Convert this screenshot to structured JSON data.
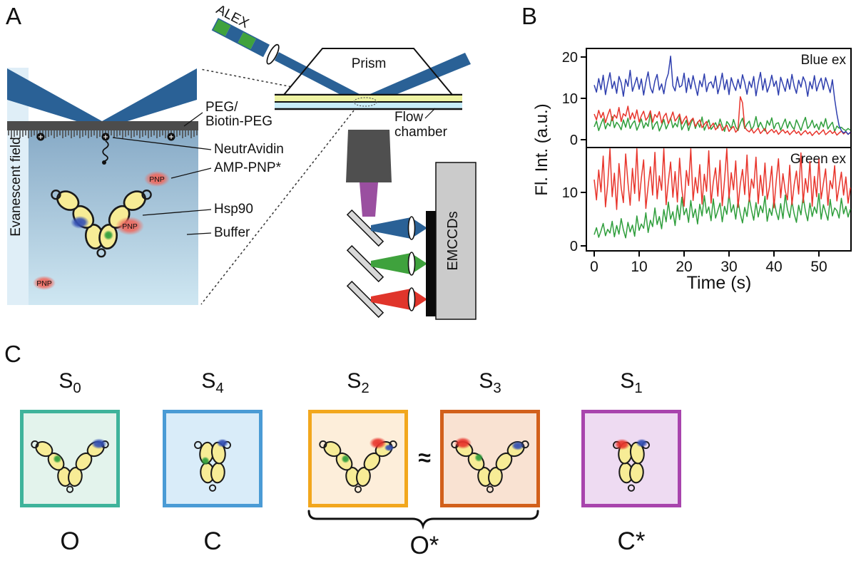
{
  "panels": {
    "a": "A",
    "b": "B",
    "c": "C"
  },
  "colors": {
    "laser_blue": "#2a6196",
    "laser_green": "#3fa23d",
    "laser_red": "#e0352b",
    "laser_purple": "#9a4fa0",
    "dye_blue": "#3450b4",
    "dye_green": "#2f9e3c",
    "dye_red": "#e8352c",
    "protein_yellow": "#f7ec96",
    "pnp_red": "#ee6a5f"
  },
  "panel_a": {
    "evanescent_field": "Evanescent field",
    "alex": "ALEX",
    "prism": "Prism",
    "flow_line1": "Flow",
    "flow_line2": "chamber",
    "emccds": "EMCCDs",
    "peg_line1": "PEG/",
    "peg_line2": "Biotin-PEG",
    "neutravidin": "NeutrAvidin",
    "amp_pnp": "AMP-PNP*",
    "hsp90": "Hsp90",
    "buffer": "Buffer",
    "pnp_label": "PNP"
  },
  "chart_data": [
    {
      "type": "line",
      "annotation": "Blue ex",
      "xlabel": "Time (s)",
      "ylabel": "Fl. Int. (a.u.)",
      "x_start": 0,
      "x_step": 0.5,
      "xlim": [
        -1.7,
        57.1
      ],
      "ylim": [
        -1.9,
        22
      ],
      "yticks": [
        0,
        10,
        20
      ],
      "xticks": [
        0,
        10,
        20,
        30,
        40,
        50
      ],
      "grid": false,
      "legend": false,
      "series": [
        {
          "name": "green channel",
          "color": "#2f9e3c",
          "values": [
            3.1,
            4.5,
            2.2,
            3.8,
            5.1,
            2.6,
            4.0,
            3.3,
            5.6,
            2.9,
            4.2,
            3.5,
            2.4,
            4.8,
            3.0,
            5.2,
            2.7,
            3.9,
            4.6,
            2.3,
            3.6,
            5.0,
            2.8,
            4.1,
            3.2,
            6.4,
            2.5,
            3.7,
            4.4,
            2.1,
            3.4,
            4.9,
            2.6,
            3.8,
            5.3,
            2.9,
            4.0,
            3.1,
            5.7,
            2.4,
            3.5,
            4.7,
            2.2,
            3.9,
            5.1,
            2.7,
            4.3,
            3.0,
            5.5,
            2.3,
            3.6,
            4.8,
            2.5,
            3.2,
            4.1,
            2.8,
            5.0,
            3.4,
            2.0,
            4.4,
            3.7,
            2.6,
            4.9,
            3.1,
            2.2,
            4.0,
            5.2,
            2.7,
            3.8,
            4.5,
            2.4,
            3.3,
            5.6,
            2.9,
            4.2,
            3.0,
            2.1,
            4.6,
            3.5,
            5.3,
            2.6,
            3.9,
            4.1,
            2.3,
            3.7,
            5.0,
            2.8,
            4.4,
            3.2,
            2.5,
            4.8,
            3.6,
            2.2,
            4.0,
            5.4,
            2.7,
            3.4,
            4.7,
            2.9,
            3.8,
            2.4,
            4.3,
            3.1,
            5.1,
            2.6,
            3.5,
            4.2,
            2.0,
            3.3,
            2.8,
            3.0,
            2.5,
            2.2,
            2.7,
            2.3
          ]
        },
        {
          "name": "red channel",
          "color": "#e8352c",
          "values": [
            6.2,
            4.8,
            7.1,
            5.3,
            6.6,
            4.1,
            5.9,
            7.4,
            4.6,
            6.0,
            5.2,
            7.8,
            4.4,
            6.3,
            5.7,
            8.1,
            4.9,
            6.5,
            5.0,
            7.2,
            4.3,
            5.8,
            6.9,
            4.7,
            5.5,
            7.0,
            4.2,
            6.1,
            5.4,
            6.8,
            4.0,
            5.6,
            6.4,
            3.9,
            5.1,
            6.7,
            4.5,
            5.3,
            6.2,
            3.8,
            4.9,
            5.7,
            3.5,
            4.6,
            5.2,
            3.2,
            4.1,
            4.8,
            2.9,
            3.7,
            4.4,
            2.6,
            3.3,
            4.0,
            2.4,
            3.1,
            3.8,
            2.2,
            2.9,
            3.5,
            2.0,
            2.7,
            3.2,
            1.8,
            2.5,
            10.4,
            8.9,
            3.0,
            2.3,
            1.9,
            2.6,
            1.6,
            2.2,
            2.8,
            1.5,
            2.1,
            2.7,
            1.4,
            2.0,
            2.5,
            1.7,
            2.3,
            1.3,
            1.9,
            2.4,
            1.6,
            2.1,
            1.2,
            1.8,
            2.3,
            1.5,
            2.0,
            1.1,
            1.7,
            2.2,
            1.4,
            1.9,
            1.0,
            1.6,
            2.1,
            1.3,
            1.8,
            2.4,
            1.2,
            1.7,
            2.2,
            1.5,
            2.0,
            1.1,
            1.6,
            2.1,
            1.4,
            1.9,
            1.3,
            1.7
          ]
        },
        {
          "name": "blue channel",
          "color": "#2f3fae",
          "values": [
            13.2,
            11.5,
            14.8,
            12.1,
            15.6,
            10.9,
            13.7,
            16.2,
            12.4,
            14.1,
            11.2,
            15.3,
            13.8,
            10.5,
            14.6,
            12.9,
            16.8,
            11.7,
            13.4,
            15.1,
            12.2,
            14.7,
            10.8,
            13.9,
            16.4,
            12.6,
            11.3,
            14.2,
            15.8,
            12.0,
            13.5,
            11.1,
            14.4,
            16.0,
            20.2,
            13.0,
            11.8,
            15.2,
            12.7,
            13.1,
            16.1,
            11.4,
            14.9,
            12.3,
            15.5,
            13.0,
            10.7,
            14.3,
            12.8,
            15.9,
            11.6,
            13.6,
            14.0,
            12.5,
            15.4,
            11.1,
            13.3,
            16.1,
            12.1,
            14.5,
            10.9,
            15.0,
            13.2,
            11.9,
            14.6,
            12.4,
            15.7,
            13.8,
            11.0,
            14.1,
            12.6,
            15.3,
            10.6,
            13.7,
            16.3,
            12.0,
            14.8,
            11.5,
            13.1,
            15.6,
            12.9,
            14.2,
            10.8,
            15.1,
            13.4,
            11.7,
            14.7,
            12.2,
            15.8,
            13.0,
            11.2,
            14.4,
            12.7,
            15.2,
            13.9,
            10.5,
            14.0,
            12.3,
            15.5,
            11.8,
            13.6,
            14.9,
            12.1,
            15.0,
            13.3,
            11.4,
            14.5,
            9.8,
            6.2,
            3.4,
            2.2,
            1.6,
            2.0,
            1.3,
            1.8
          ]
        }
      ]
    },
    {
      "type": "line",
      "annotation": "Green ex",
      "xlabel": "Time (s)",
      "ylabel": "Fl. Int. (a.u.)",
      "x_start": 0,
      "x_step": 0.5,
      "xlim": [
        -1.7,
        57.1
      ],
      "ylim": [
        -0.9,
        18.4
      ],
      "yticks": [
        0,
        10
      ],
      "xticks": [
        0,
        10,
        20,
        30,
        40,
        50
      ],
      "grid": false,
      "legend": false,
      "series": [
        {
          "name": "green channel",
          "color": "#2f9e3c",
          "values": [
            2.1,
            3.4,
            1.6,
            2.8,
            4.2,
            1.9,
            3.1,
            2.4,
            4.6,
            1.7,
            3.8,
            2.2,
            5.1,
            3.0,
            1.5,
            4.4,
            2.6,
            3.9,
            1.8,
            5.6,
            2.9,
            4.1,
            3.3,
            6.2,
            2.5,
            4.8,
            3.6,
            7.1,
            4.0,
            5.5,
            3.2,
            6.8,
            4.5,
            8.2,
            5.0,
            6.4,
            3.8,
            7.6,
            4.9,
            9.1,
            5.8,
            7.0,
            4.4,
            8.5,
            5.3,
            6.9,
            4.1,
            7.8,
            5.6,
            9.4,
            6.1,
            7.3,
            4.7,
            8.8,
            5.2,
            6.6,
            8.0,
            4.5,
            7.4,
            5.9,
            9.7,
            6.3,
            7.7,
            5.0,
            8.4,
            6.0,
            4.3,
            7.2,
            5.5,
            9.0,
            6.7,
            4.8,
            8.1,
            5.4,
            7.5,
            6.2,
            9.3,
            4.6,
            7.0,
            5.7,
            8.6,
            6.4,
            4.9,
            7.9,
            5.1,
            9.5,
            6.8,
            5.3,
            8.3,
            6.0,
            4.4,
            7.6,
            5.8,
            9.2,
            6.5,
            4.7,
            8.0,
            5.5,
            7.3,
            6.1,
            9.8,
            5.0,
            7.7,
            6.3,
            4.8,
            8.7,
            5.6,
            7.1,
            6.6,
            5.2,
            8.9,
            6.0,
            7.4,
            5.4,
            6.9
          ]
        },
        {
          "name": "red channel",
          "color": "#e8352c",
          "values": [
            12.4,
            8.6,
            14.2,
            10.1,
            16.8,
            7.3,
            11.5,
            18.9,
            9.2,
            13.6,
            6.8,
            15.4,
            10.9,
            8.1,
            17.2,
            11.8,
            7.6,
            14.5,
            9.8,
            19.6,
            8.4,
            12.7,
            16.1,
            7.0,
            11.2,
            14.8,
            9.5,
            17.5,
            8.8,
            13.1,
            10.4,
            18.2,
            7.7,
            12.0,
            15.7,
            9.1,
            13.9,
            8.2,
            16.4,
            10.6,
            7.4,
            14.1,
            11.3,
            19.0,
            8.5,
            12.8,
            9.9,
            15.2,
            7.8,
            13.4,
            10.2,
            17.8,
            8.0,
            11.9,
            14.6,
            9.3,
            16.0,
            7.5,
            12.3,
            18.5,
            8.9,
            13.7,
            10.5,
            15.9,
            7.2,
            11.6,
            14.3,
            9.6,
            17.0,
            8.3,
            12.5,
            10.8,
            16.6,
            7.9,
            13.2,
            9.4,
            15.5,
            8.7,
            11.0,
            14.9,
            7.1,
            12.1,
            16.3,
            9.0,
            13.5,
            10.3,
            8.6,
            15.1,
            7.7,
            11.4,
            14.0,
            9.7,
            17.4,
            8.1,
            12.6,
            10.0,
            15.8,
            7.4,
            13.0,
            9.2,
            16.2,
            8.8,
            11.7,
            14.4,
            7.6,
            12.2,
            10.7,
            15.0,
            8.4,
            11.1,
            13.8,
            9.5,
            12.9,
            8.0,
            10.9
          ]
        }
      ]
    }
  ],
  "panel_c": {
    "approx": "≈",
    "ostar_label": "O*",
    "states": [
      {
        "name": "S",
        "sub": "0",
        "conformation": "open",
        "border": "#3fb39b",
        "fill": "#e3f3ec",
        "bottom_label": "O"
      },
      {
        "name": "S",
        "sub": "4",
        "conformation": "closed",
        "border": "#4a9bd5",
        "fill": "#d9ecf9",
        "bottom_label": "C"
      },
      {
        "name": "S",
        "sub": "2",
        "conformation": "open",
        "border": "#f2a71d",
        "fill": "#fdeeda"
      },
      {
        "name": "S",
        "sub": "3",
        "conformation": "open",
        "border": "#d2601b",
        "fill": "#f9e2d2"
      },
      {
        "name": "S",
        "sub": "1",
        "conformation": "closed",
        "border": "#a844ad",
        "fill": "#eedbf2",
        "bottom_label": "C*"
      }
    ]
  }
}
